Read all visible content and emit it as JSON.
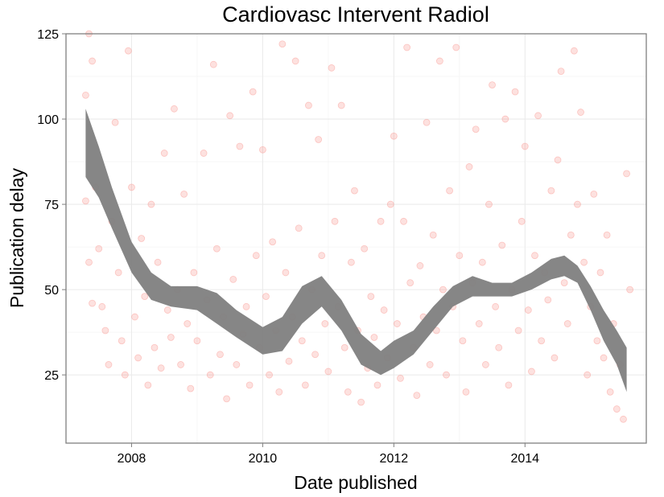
{
  "chart_data": {
    "type": "scatter",
    "title": "Cardiovasc Intervent Radiol",
    "xlabel": "Date published",
    "ylabel": "Publication delay",
    "xlim": [
      2007.0,
      2015.85
    ],
    "ylim": [
      5,
      125
    ],
    "x_ticks": [
      2008,
      2010,
      2012,
      2014
    ],
    "x_tick_labels": [
      "2008",
      "2010",
      "2012",
      "2014"
    ],
    "y_ticks": [
      25,
      50,
      75,
      100,
      125
    ],
    "y_tick_labels": [
      "25",
      "50",
      "75",
      "100",
      "125"
    ],
    "grid": true,
    "legend": "none",
    "point_color": "#f8766d",
    "band_color": "#808080",
    "series": [
      {
        "kind": "points",
        "points": [
          [
            2007.3,
            107
          ],
          [
            2007.35,
            125
          ],
          [
            2007.4,
            117
          ],
          [
            2007.3,
            76
          ],
          [
            2007.35,
            58
          ],
          [
            2007.4,
            46
          ],
          [
            2007.45,
            80
          ],
          [
            2007.5,
            62
          ],
          [
            2007.55,
            45
          ],
          [
            2007.6,
            38
          ],
          [
            2007.65,
            28
          ],
          [
            2007.7,
            70
          ],
          [
            2007.75,
            99
          ],
          [
            2007.8,
            55
          ],
          [
            2007.85,
            35
          ],
          [
            2007.9,
            25
          ],
          [
            2007.95,
            120
          ],
          [
            2008.0,
            80
          ],
          [
            2008.05,
            42
          ],
          [
            2008.1,
            30
          ],
          [
            2008.15,
            65
          ],
          [
            2008.2,
            48
          ],
          [
            2008.25,
            22
          ],
          [
            2008.3,
            75
          ],
          [
            2008.35,
            33
          ],
          [
            2008.4,
            58
          ],
          [
            2008.45,
            27
          ],
          [
            2008.5,
            90
          ],
          [
            2008.55,
            44
          ],
          [
            2008.6,
            36
          ],
          [
            2008.65,
            103
          ],
          [
            2008.7,
            50
          ],
          [
            2008.75,
            28
          ],
          [
            2008.8,
            78
          ],
          [
            2008.85,
            40
          ],
          [
            2008.9,
            21
          ],
          [
            2008.95,
            55
          ],
          [
            2009.0,
            35
          ],
          [
            2009.1,
            90
          ],
          [
            2009.15,
            47
          ],
          [
            2009.2,
            25
          ],
          [
            2009.25,
            116
          ],
          [
            2009.3,
            62
          ],
          [
            2009.35,
            31
          ],
          [
            2009.4,
            42
          ],
          [
            2009.45,
            18
          ],
          [
            2009.5,
            101
          ],
          [
            2009.55,
            53
          ],
          [
            2009.6,
            28
          ],
          [
            2009.65,
            92
          ],
          [
            2009.7,
            37
          ],
          [
            2009.75,
            45
          ],
          [
            2009.8,
            22
          ],
          [
            2009.85,
            108
          ],
          [
            2009.9,
            60
          ],
          [
            2009.95,
            33
          ],
          [
            2010.0,
            91
          ],
          [
            2010.05,
            48
          ],
          [
            2010.1,
            25
          ],
          [
            2010.15,
            64
          ],
          [
            2010.2,
            38
          ],
          [
            2010.25,
            20
          ],
          [
            2010.3,
            122
          ],
          [
            2010.35,
            55
          ],
          [
            2010.4,
            29
          ],
          [
            2010.45,
            42
          ],
          [
            2010.5,
            117
          ],
          [
            2010.55,
            68
          ],
          [
            2010.6,
            35
          ],
          [
            2010.65,
            22
          ],
          [
            2010.7,
            104
          ],
          [
            2010.75,
            50
          ],
          [
            2010.8,
            31
          ],
          [
            2010.85,
            94
          ],
          [
            2010.9,
            60
          ],
          [
            2010.95,
            40
          ],
          [
            2011.0,
            26
          ],
          [
            2011.05,
            115
          ],
          [
            2011.1,
            70
          ],
          [
            2011.15,
            45
          ],
          [
            2011.2,
            104
          ],
          [
            2011.25,
            33
          ],
          [
            2011.3,
            20
          ],
          [
            2011.35,
            58
          ],
          [
            2011.4,
            79
          ],
          [
            2011.45,
            38
          ],
          [
            2011.5,
            17
          ],
          [
            2011.55,
            62
          ],
          [
            2011.6,
            27
          ],
          [
            2011.65,
            48
          ],
          [
            2011.7,
            36
          ],
          [
            2011.75,
            22
          ],
          [
            2011.8,
            70
          ],
          [
            2011.85,
            44
          ],
          [
            2011.9,
            30
          ],
          [
            2011.95,
            75
          ],
          [
            2012.0,
            95
          ],
          [
            2012.05,
            40
          ],
          [
            2012.1,
            24
          ],
          [
            2012.15,
            70
          ],
          [
            2012.2,
            121
          ],
          [
            2012.25,
            52
          ],
          [
            2012.3,
            33
          ],
          [
            2012.35,
            19
          ],
          [
            2012.4,
            57
          ],
          [
            2012.45,
            42
          ],
          [
            2012.5,
            99
          ],
          [
            2012.55,
            28
          ],
          [
            2012.6,
            66
          ],
          [
            2012.65,
            38
          ],
          [
            2012.7,
            117
          ],
          [
            2012.75,
            50
          ],
          [
            2012.8,
            25
          ],
          [
            2012.85,
            79
          ],
          [
            2012.9,
            45
          ],
          [
            2012.95,
            121
          ],
          [
            2013.0,
            60
          ],
          [
            2013.05,
            35
          ],
          [
            2013.1,
            20
          ],
          [
            2013.15,
            86
          ],
          [
            2013.2,
            52
          ],
          [
            2013.25,
            97
          ],
          [
            2013.3,
            40
          ],
          [
            2013.35,
            58
          ],
          [
            2013.4,
            28
          ],
          [
            2013.45,
            75
          ],
          [
            2013.5,
            110
          ],
          [
            2013.55,
            45
          ],
          [
            2013.6,
            33
          ],
          [
            2013.65,
            63
          ],
          [
            2013.7,
            100
          ],
          [
            2013.75,
            22
          ],
          [
            2013.8,
            50
          ],
          [
            2013.85,
            108
          ],
          [
            2013.9,
            38
          ],
          [
            2013.95,
            70
          ],
          [
            2014.0,
            92
          ],
          [
            2014.05,
            44
          ],
          [
            2014.1,
            26
          ],
          [
            2014.15,
            60
          ],
          [
            2014.2,
            101
          ],
          [
            2014.25,
            35
          ],
          [
            2014.3,
            55
          ],
          [
            2014.35,
            47
          ],
          [
            2014.4,
            79
          ],
          [
            2014.45,
            30
          ],
          [
            2014.5,
            88
          ],
          [
            2014.55,
            114
          ],
          [
            2014.6,
            52
          ],
          [
            2014.65,
            40
          ],
          [
            2014.7,
            66
          ],
          [
            2014.75,
            120
          ],
          [
            2014.8,
            75
          ],
          [
            2014.85,
            102
          ],
          [
            2014.9,
            58
          ],
          [
            2014.95,
            25
          ],
          [
            2015.0,
            45
          ],
          [
            2015.05,
            78
          ],
          [
            2015.1,
            35
          ],
          [
            2015.15,
            55
          ],
          [
            2015.2,
            30
          ],
          [
            2015.25,
            66
          ],
          [
            2015.3,
            20
          ],
          [
            2015.35,
            40
          ],
          [
            2015.4,
            15
          ],
          [
            2015.45,
            28
          ],
          [
            2015.5,
            12
          ],
          [
            2015.55,
            84
          ],
          [
            2015.6,
            50
          ]
        ]
      },
      {
        "kind": "smooth",
        "x": [
          2007.3,
          2007.5,
          2007.7,
          2008.0,
          2008.3,
          2008.6,
          2009.0,
          2009.3,
          2009.6,
          2010.0,
          2010.3,
          2010.6,
          2010.9,
          2011.2,
          2011.5,
          2011.8,
          2012.0,
          2012.3,
          2012.6,
          2012.9,
          2013.2,
          2013.5,
          2013.8,
          2014.1,
          2014.4,
          2014.6,
          2014.8,
          2015.0,
          2015.2,
          2015.4,
          2015.55
        ],
        "lower": [
          83,
          77,
          68,
          55,
          47,
          45,
          44,
          40,
          36,
          31,
          32,
          40,
          45,
          38,
          28,
          25,
          27,
          31,
          38,
          45,
          48,
          48,
          48,
          50,
          53,
          54,
          52,
          44,
          35,
          28,
          20
        ],
        "upper": [
          103,
          92,
          80,
          64,
          55,
          51,
          51,
          49,
          44,
          39,
          42,
          51,
          54,
          47,
          37,
          32,
          35,
          38,
          45,
          51,
          54,
          52,
          52,
          55,
          59,
          60,
          57,
          51,
          44,
          38,
          33
        ]
      }
    ]
  }
}
